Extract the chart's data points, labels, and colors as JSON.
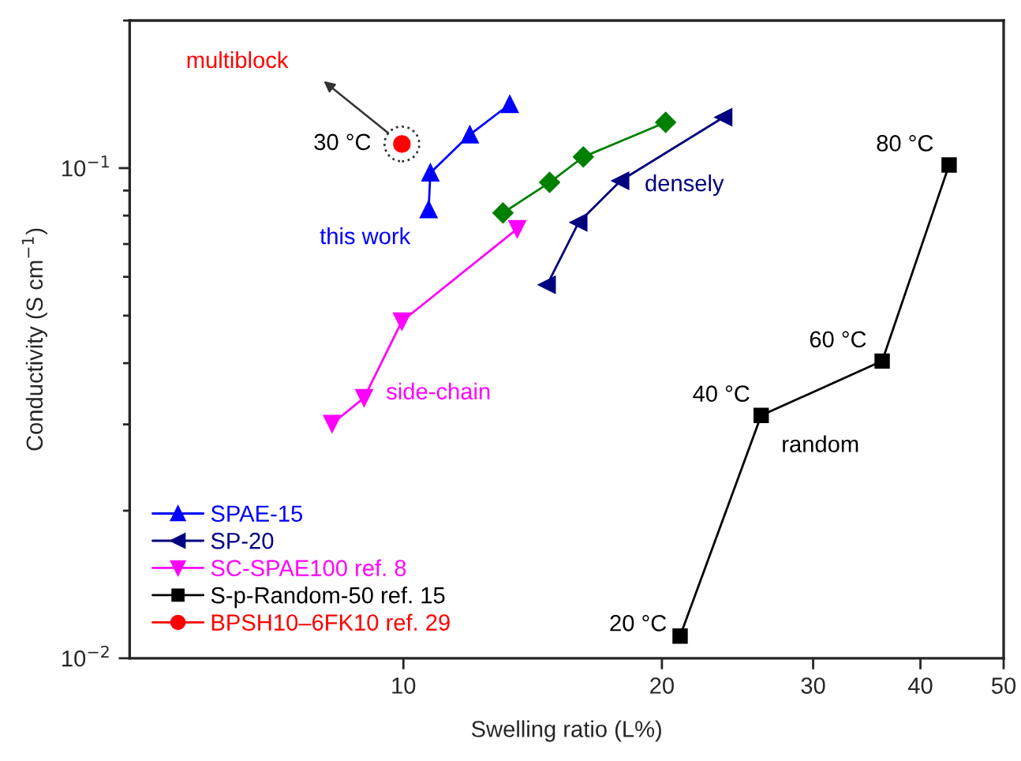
{
  "chart_data": {
    "type": "line",
    "xlabel": "Swelling ratio (L%)",
    "ylabel": "Conductivity (S cm$^{−1}$)",
    "log": "xy",
    "xlim": [
      4.8,
      50
    ],
    "xticks": [
      10,
      20,
      30,
      40,
      50
    ],
    "ylim": [
      0.01,
      0.2
    ],
    "yticks": [
      {
        "value": 0.01,
        "label": "10$^{−2}$"
      },
      {
        "value": 0.02,
        "label": null
      },
      {
        "value": 0.03,
        "label": null
      },
      {
        "value": 0.04,
        "label": null
      },
      {
        "value": 0.05,
        "label": null
      },
      {
        "value": 0.06,
        "label": null
      },
      {
        "value": 0.07,
        "label": null
      },
      {
        "value": 0.08,
        "label": null
      },
      {
        "value": 0.09,
        "label": null
      },
      {
        "value": 0.1,
        "label": "10$^{−1}$"
      },
      {
        "value": 0.2,
        "label": null
      }
    ],
    "grid": false,
    "legend": "bottom left",
    "series": [
      {
        "name": "SPAE-15",
        "color": "#0000ff",
        "marker": "triangle",
        "x": [
          10.7,
          10.75,
          11.95,
          13.3
        ],
        "values": [
          0.0823,
          0.0978,
          0.117,
          0.135
        ]
      },
      {
        "color": "#008000",
        "marker": "diamond",
        "x": [
          13.06,
          14.8,
          16.2,
          20.2
        ],
        "values": [
          0.081,
          0.0935,
          0.1054,
          0.124
        ]
      },
      {
        "name": "SP-20",
        "color": "#000080",
        "marker": "triangle-left",
        "x": [
          14.7,
          16.0,
          17.9,
          23.6
        ],
        "values": [
          0.0578,
          0.0775,
          0.0942,
          0.127
        ]
      },
      {
        "name": "SC-SPAE100 ref. 8",
        "color": "#ff00ff",
        "marker": "triangle-down",
        "x": [
          8.26,
          9.0,
          9.96,
          13.57
        ],
        "values": [
          0.0301,
          0.034,
          0.0487,
          0.0752
        ]
      },
      {
        "name": "S-p-Random-50 ref. 15",
        "color": "#000000",
        "marker": "square",
        "x": [
          21.0,
          26.1,
          36.1,
          43.2
        ],
        "values": [
          0.0111,
          0.0313,
          0.0404,
          0.1015
        ]
      },
      {
        "name": "BPSH10–6FK10 ref. 29",
        "color": "#ff0000",
        "marker": "circle",
        "x": [
          9.96
        ],
        "values": [
          0.112
        ]
      }
    ],
    "annotations": [
      "multiblock",
      {
        "text": "30 °C",
        "x": 9.96,
        "y": 0.112
      },
      {
        "text": "this work",
        "x": 10.7,
        "y": 0.0823
      },
      {
        "text": "densely",
        "x": 17.9,
        "y": 0.0942
      },
      {
        "text": "side-chain",
        "x": 9.0,
        "y": 0.034
      },
      {
        "text": "20 °C",
        "x": 21.0,
        "y": 0.0111
      },
      {
        "text": "40 °C",
        "x": 26.1,
        "y": 0.0313
      },
      {
        "text": "random",
        "x": 26.1,
        "y": 0.0313
      },
      {
        "text": "60 °C",
        "x": 36.1,
        "y": 0.0404
      },
      {
        "text": "80 °C",
        "x": 43.2,
        "y": 0.1015
      }
    ]
  }
}
